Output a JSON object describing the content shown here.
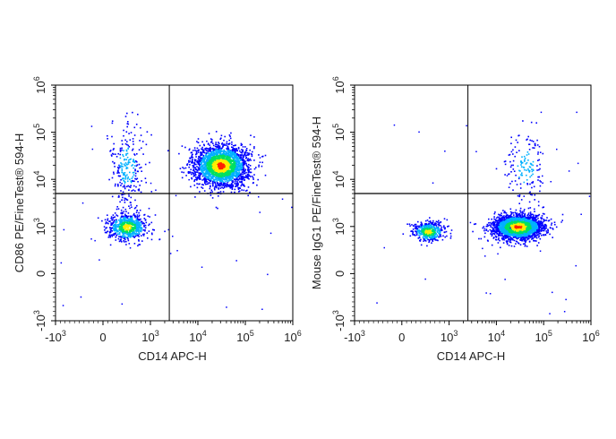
{
  "colors": {
    "frame": "#000000",
    "gate": "#000000",
    "density_low": "#0000ff",
    "density_mid_low": "#00b0ff",
    "density_mid": "#00e060",
    "density_mid_high": "#ffee00",
    "density_high": "#ff2000"
  },
  "chart_data": [
    {
      "type": "scatter",
      "subtype": "flow-cytometry-density-plot",
      "title": "",
      "xlabel": "CD14 APC-H",
      "ylabel": "CD86 PE/FineTest® 594-H",
      "x_scale": "biexponential",
      "y_scale": "biexponential",
      "xlim": [
        -1000,
        1000000
      ],
      "ylim": [
        -1000,
        1000000
      ],
      "x_ticks": [
        {
          "base": "-10",
          "exp": "3",
          "value": -1000
        },
        {
          "base": "0",
          "exp": "",
          "value": 0
        },
        {
          "base": "10",
          "exp": "3",
          "value": 1000
        },
        {
          "base": "10",
          "exp": "4",
          "value": 10000
        },
        {
          "base": "10",
          "exp": "5",
          "value": 100000
        },
        {
          "base": "10",
          "exp": "6",
          "value": 1000000
        }
      ],
      "y_ticks": [
        {
          "base": "-10",
          "exp": "3",
          "value": -1000
        },
        {
          "base": "0",
          "exp": "",
          "value": 0
        },
        {
          "base": "10",
          "exp": "3",
          "value": 1000
        },
        {
          "base": "10",
          "exp": "4",
          "value": 10000
        },
        {
          "base": "10",
          "exp": "5",
          "value": 100000
        },
        {
          "base": "10",
          "exp": "6",
          "value": 1000000
        }
      ],
      "quadrant_gate": {
        "x": 2500,
        "y": 5000
      },
      "populations": [
        {
          "x_center": 30000,
          "y_center": 20000,
          "x_spread": 0.28,
          "y_spread": 0.22,
          "events": 2600,
          "density": "high"
        },
        {
          "x_center": 500,
          "y_center": 1000,
          "x_spread": 0.2,
          "y_spread": 0.14,
          "events": 700,
          "density": "medium"
        },
        {
          "x_center": 500,
          "y_center": 20000,
          "x_spread": 0.18,
          "y_spread": 0.45,
          "events": 260,
          "density": "low"
        }
      ]
    },
    {
      "type": "scatter",
      "subtype": "flow-cytometry-density-plot",
      "title": "",
      "xlabel": "CD14 APC-H",
      "ylabel": "Mouse IgG1 PE/FineTest® 594-H",
      "x_scale": "biexponential",
      "y_scale": "biexponential",
      "xlim": [
        -1000,
        1000000
      ],
      "ylim": [
        -1000,
        1000000
      ],
      "x_ticks": [
        {
          "base": "-10",
          "exp": "3",
          "value": -1000
        },
        {
          "base": "0",
          "exp": "",
          "value": 0
        },
        {
          "base": "10",
          "exp": "3",
          "value": 1000
        },
        {
          "base": "10",
          "exp": "4",
          "value": 10000
        },
        {
          "base": "10",
          "exp": "5",
          "value": 100000
        },
        {
          "base": "10",
          "exp": "6",
          "value": 1000000
        }
      ],
      "y_ticks": [
        {
          "base": "-10",
          "exp": "3",
          "value": -1000
        },
        {
          "base": "0",
          "exp": "",
          "value": 0
        },
        {
          "base": "10",
          "exp": "3",
          "value": 1000
        },
        {
          "base": "10",
          "exp": "4",
          "value": 10000
        },
        {
          "base": "10",
          "exp": "5",
          "value": 100000
        },
        {
          "base": "10",
          "exp": "6",
          "value": 1000000
        }
      ],
      "quadrant_gate": {
        "x": 2500,
        "y": 5000
      },
      "populations": [
        {
          "x_center": 28000,
          "y_center": 1000,
          "x_spread": 0.26,
          "y_spread": 0.13,
          "events": 2600,
          "density": "high"
        },
        {
          "x_center": 550,
          "y_center": 900,
          "x_spread": 0.16,
          "y_spread": 0.1,
          "events": 500,
          "density": "medium"
        },
        {
          "x_center": 40000,
          "y_center": 20000,
          "x_spread": 0.2,
          "y_spread": 0.4,
          "events": 160,
          "density": "low"
        }
      ]
    }
  ]
}
